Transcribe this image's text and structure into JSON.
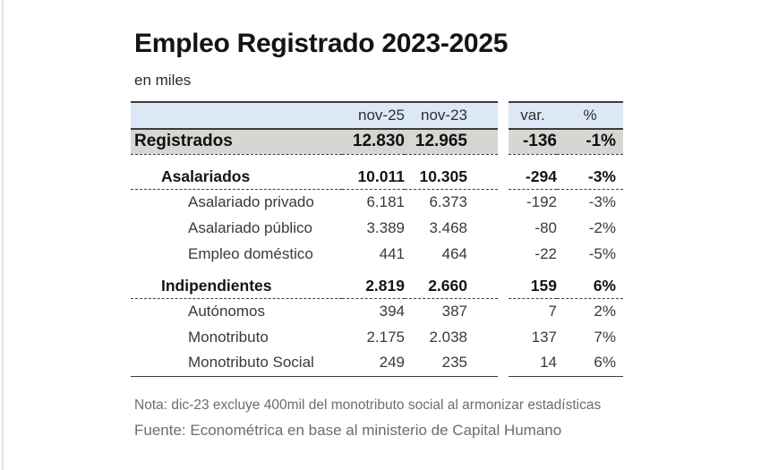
{
  "page": {
    "title": "Empleo Registrado 2023-2025",
    "subtitle": "en miles"
  },
  "table": {
    "columns": {
      "nov25": "nov-25",
      "nov23": "nov-23",
      "var": "var.",
      "pct": "%"
    },
    "rows": [
      {
        "label": "Registrados",
        "nov25": "12.830",
        "nov23": "12.965",
        "var": "-136",
        "pct": "-1%"
      },
      {
        "label": "Asalariados",
        "nov25": "10.011",
        "nov23": "10.305",
        "var": "-294",
        "pct": "-3%"
      },
      {
        "label": "Asalariado privado",
        "nov25": "6.181",
        "nov23": "6.373",
        "var": "-192",
        "pct": "-3%"
      },
      {
        "label": "Asalariado público",
        "nov25": "3.389",
        "nov23": "3.468",
        "var": "-80",
        "pct": "-2%"
      },
      {
        "label": "Empleo doméstico",
        "nov25": "441",
        "nov23": "464",
        "var": "-22",
        "pct": "-5%"
      },
      {
        "label": "Indipendientes",
        "nov25": "2.819",
        "nov23": "2.660",
        "var": "159",
        "pct": "6%"
      },
      {
        "label": "Autónomos",
        "nov25": "394",
        "nov23": "387",
        "var": "7",
        "pct": "2%"
      },
      {
        "label": "Monotributo",
        "nov25": "2.175",
        "nov23": "2.038",
        "var": "137",
        "pct": "7%"
      },
      {
        "label": "Monotributo Social",
        "nov25": "249",
        "nov23": "235",
        "var": "14",
        "pct": "6%"
      }
    ]
  },
  "footer": {
    "note": "Nota: dic-23 excluye 400mil del monotributo social al armonizar estadísticas",
    "source": "Fuente: Econométrica en base al ministerio de Capital Humano"
  },
  "colors": {
    "header_bg": "#dce8f6",
    "total_row_bg": "#d6d6d3",
    "rule": "#3c3c3c"
  }
}
